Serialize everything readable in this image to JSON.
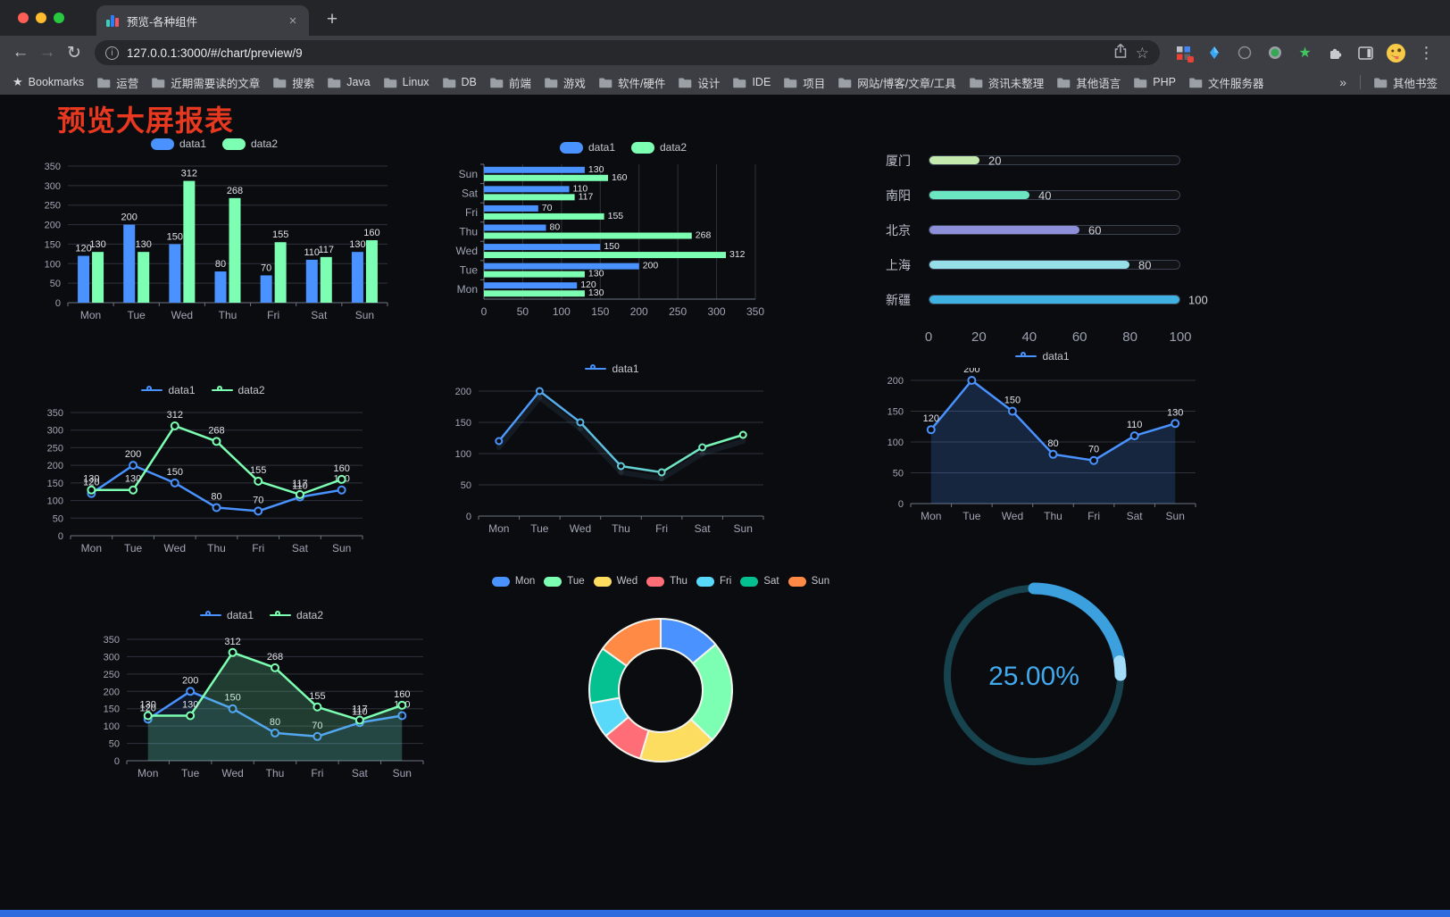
{
  "browser": {
    "tab_title": "预览-各种组件",
    "tab_close": "×",
    "new_tab": "+",
    "url": "127.0.0.1:3000/#/chart/preview/9",
    "bookmarks_label": "Bookmarks",
    "bookmark_folders": [
      "运营",
      "近期需要读的文章",
      "搜索",
      "Java",
      "Linux",
      "DB",
      "前端",
      "游戏",
      "软件/硬件",
      "设计",
      "IDE",
      "项目",
      "网站/博客/文章/工具",
      "资讯未整理",
      "其他语言",
      "PHP",
      "文件服务器"
    ],
    "bookmarks_overflow": "»",
    "other_bookmarks": "其他书签"
  },
  "page": {
    "title": "预览大屏报表"
  },
  "chart_data": [
    {
      "type": "bar",
      "legend": [
        "data1",
        "data2"
      ],
      "categories": [
        "Mon",
        "Tue",
        "Wed",
        "Thu",
        "Fri",
        "Sat",
        "Sun"
      ],
      "series": [
        {
          "name": "data1",
          "color": "#4992ff",
          "values": [
            120,
            200,
            150,
            80,
            70,
            110,
            130
          ]
        },
        {
          "name": "data2",
          "color": "#7cffb2",
          "values": [
            130,
            130,
            312,
            268,
            155,
            117,
            160
          ]
        }
      ],
      "ylim": [
        0,
        350
      ],
      "ytick_step": 50,
      "labels": true
    },
    {
      "type": "hbar",
      "legend": [
        "data1",
        "data2"
      ],
      "categories": [
        "Mon",
        "Tue",
        "Wed",
        "Thu",
        "Fri",
        "Sat",
        "Sun"
      ],
      "series": [
        {
          "name": "data1",
          "color": "#4992ff",
          "values": [
            120,
            200,
            150,
            80,
            70,
            110,
            130
          ]
        },
        {
          "name": "data2",
          "color": "#7cffb2",
          "values": [
            130,
            130,
            312,
            268,
            155,
            117,
            160
          ]
        }
      ],
      "xlim": [
        0,
        350
      ],
      "xtick_step": 50,
      "labels": true
    },
    {
      "type": "progress",
      "max": 100,
      "xticks": [
        0,
        20,
        40,
        60,
        80,
        100
      ],
      "items": [
        {
          "label": "厦门",
          "value": 20,
          "color": "#c4ebad"
        },
        {
          "label": "南阳",
          "value": 40,
          "color": "#6be6c1"
        },
        {
          "label": "北京",
          "value": 60,
          "color": "#8d8fd9"
        },
        {
          "label": "上海",
          "value": 80,
          "color": "#96dee8"
        },
        {
          "label": "新疆",
          "value": 100,
          "color": "#3fb1e3"
        }
      ]
    },
    {
      "type": "line",
      "legend": [
        "data1",
        "data2"
      ],
      "categories": [
        "Mon",
        "Tue",
        "Wed",
        "Thu",
        "Fri",
        "Sat",
        "Sun"
      ],
      "series": [
        {
          "name": "data1",
          "color": "#4992ff",
          "values": [
            120,
            200,
            150,
            80,
            70,
            110,
            130
          ]
        },
        {
          "name": "data2",
          "color": "#7cffb2",
          "values": [
            130,
            130,
            312,
            268,
            155,
            117,
            160
          ]
        }
      ],
      "ylim": [
        0,
        350
      ],
      "ytick_step": 50,
      "labels": true
    },
    {
      "type": "line",
      "legend": [
        "data1"
      ],
      "categories": [
        "Mon",
        "Tue",
        "Wed",
        "Thu",
        "Fri",
        "Sat",
        "Sun"
      ],
      "series": [
        {
          "name": "data1",
          "color_start": "#4992ff",
          "color_end": "#7cffb2",
          "values": [
            120,
            200,
            150,
            80,
            70,
            110,
            130
          ]
        }
      ],
      "ylim": [
        0,
        200
      ],
      "ytick_step": 50,
      "labels": false
    },
    {
      "type": "line",
      "legend": [
        "data1"
      ],
      "categories": [
        "Mon",
        "Tue",
        "Wed",
        "Thu",
        "Fri",
        "Sat",
        "Sun"
      ],
      "series": [
        {
          "name": "data1",
          "color": "#4992ff",
          "values": [
            120,
            200,
            150,
            80,
            70,
            110,
            130
          ],
          "area": 0.2
        }
      ],
      "ylim": [
        0,
        200
      ],
      "ytick_step": 50,
      "labels": true
    },
    {
      "type": "line",
      "legend": [
        "data1",
        "data2"
      ],
      "categories": [
        "Mon",
        "Tue",
        "Wed",
        "Thu",
        "Fri",
        "Sat",
        "Sun"
      ],
      "series": [
        {
          "name": "data1",
          "color": "#4992ff",
          "values": [
            120,
            200,
            150,
            80,
            70,
            110,
            130
          ],
          "area": 0.1
        },
        {
          "name": "data2",
          "color": "#7cffb2",
          "values": [
            130,
            130,
            312,
            268,
            155,
            117,
            160
          ],
          "area": 0.2
        }
      ],
      "ylim": [
        0,
        350
      ],
      "ytick_step": 50,
      "labels": true
    },
    {
      "type": "donut",
      "legend": [
        "Mon",
        "Tue",
        "Wed",
        "Thu",
        "Fri",
        "Sat",
        "Sun"
      ],
      "values": [
        120,
        200,
        150,
        80,
        70,
        110,
        130
      ],
      "colors": [
        "#4992ff",
        "#7cffb2",
        "#fddd60",
        "#ff6e76",
        "#58d9f9",
        "#05c091",
        "#ff8a45"
      ]
    },
    {
      "type": "gauge",
      "value": 25,
      "text": "25.00%",
      "colors": {
        "track": "#17434f",
        "progress": "#3ba0dd",
        "tip": "#a3dcf9",
        "text": "#41a9ed"
      }
    }
  ]
}
